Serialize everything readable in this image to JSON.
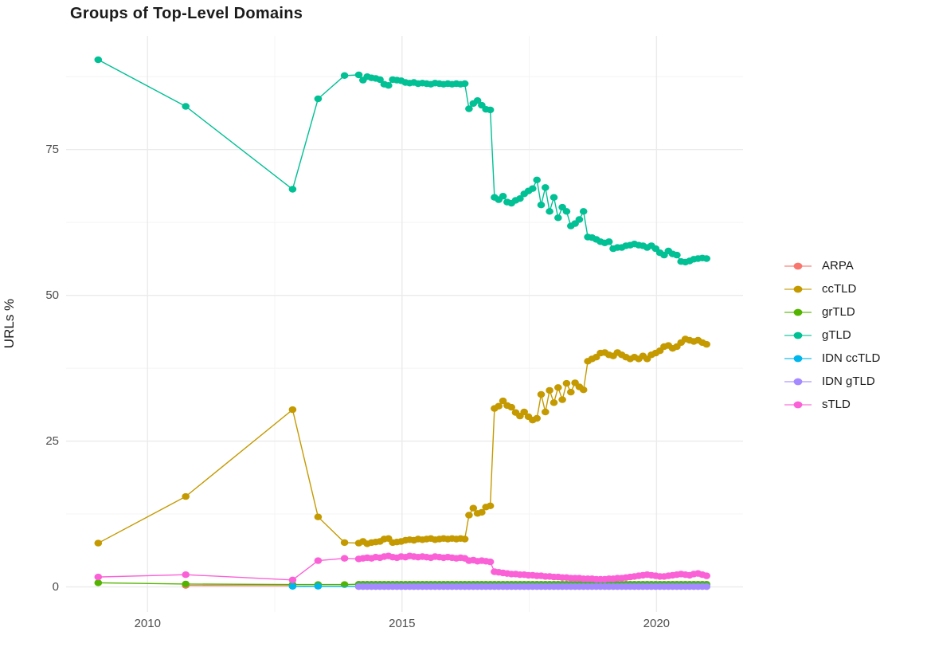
{
  "chart_data": {
    "type": "line",
    "title": "Groups of Top-Level Domains",
    "xlabel": "",
    "ylabel": "URLs %",
    "grid": "on",
    "legend_position": "right",
    "background_color": "#FFFFFF",
    "grid_major_color": "#EBEBEB",
    "grid_minor_color": "#F4F4F4",
    "tick_text_color": "#4D4D4D",
    "title_color": "#1B1B1B",
    "x_domain": [
      2008.4,
      2021.7
    ],
    "y_domain": [
      -4.3,
      94.5
    ],
    "x_ticks_major": [
      2010,
      2015,
      2020
    ],
    "x_ticks_minor": [
      2012.5,
      2017.5
    ],
    "y_ticks_major": [
      0,
      25,
      50,
      75
    ],
    "y_ticks_minor": [
      12.5,
      37.5,
      62.5,
      87.5
    ],
    "x_tick_labels": [
      "2010",
      "2015",
      "2020"
    ],
    "y_tick_labels": [
      "0",
      "25",
      "50",
      "75"
    ],
    "monthly_x": {
      "start": 2014.15,
      "step": 0.08333
    },
    "series": [
      {
        "name": "ARPA",
        "color": "#F8766D",
        "pre": [
          [
            2010.75,
            0.25
          ],
          [
            2012.85,
            0.2
          ]
        ],
        "monthly_values": null
      },
      {
        "name": "ccTLD",
        "color": "#C49A00",
        "pre": [
          [
            2009.03,
            7.5
          ],
          [
            2010.75,
            15.5
          ],
          [
            2012.85,
            30.4
          ],
          [
            2013.35,
            12.0
          ],
          [
            2013.87,
            7.6
          ]
        ],
        "monthly_values": [
          7.5,
          7.8,
          7.4,
          7.6,
          7.7,
          7.8,
          8.2,
          8.3,
          7.6,
          7.7,
          7.8,
          8.0,
          8.1,
          8.0,
          8.2,
          8.1,
          8.2,
          8.3,
          8.1,
          8.2,
          8.3,
          8.2,
          8.3,
          8.2,
          8.3,
          8.2,
          12.3,
          13.5,
          12.6,
          12.8,
          13.7,
          13.9,
          30.6,
          31.0,
          31.9,
          31.1,
          30.8,
          29.9,
          29.3,
          30.0,
          29.2,
          28.6,
          28.9,
          33.0,
          30.0,
          33.7,
          31.6,
          34.2,
          32.1,
          34.9,
          33.4,
          35.0,
          34.3,
          33.8,
          38.7,
          39.1,
          39.4,
          40.1,
          40.2,
          39.8,
          39.6,
          40.2,
          39.8,
          39.4,
          39.1,
          39.4,
          39.1,
          39.6,
          39.1,
          39.8,
          40.1,
          40.5,
          41.2,
          41.4,
          40.9,
          41.2,
          41.9,
          42.5,
          42.3,
          42.1,
          42.3,
          41.9,
          41.6
        ]
      },
      {
        "name": "grTLD",
        "color": "#53B400",
        "pre": [
          [
            2009.03,
            0.7
          ],
          [
            2010.75,
            0.5
          ],
          [
            2012.85,
            0.4
          ],
          [
            2013.35,
            0.4
          ],
          [
            2013.87,
            0.4
          ]
        ],
        "monthly_values": {
          "const": 0.45,
          "count": 83
        }
      },
      {
        "name": "gTLD",
        "color": "#00C094",
        "pre": [
          [
            2009.03,
            90.4
          ],
          [
            2010.75,
            82.4
          ],
          [
            2012.85,
            68.2
          ],
          [
            2013.35,
            83.7
          ],
          [
            2013.87,
            87.7
          ]
        ],
        "monthly_values": [
          87.8,
          86.9,
          87.5,
          87.3,
          87.2,
          87.0,
          86.2,
          86.0,
          87.0,
          86.9,
          86.8,
          86.5,
          86.4,
          86.5,
          86.3,
          86.4,
          86.3,
          86.2,
          86.4,
          86.3,
          86.2,
          86.3,
          86.2,
          86.3,
          86.2,
          86.3,
          82.0,
          82.9,
          83.4,
          82.6,
          81.9,
          81.8,
          66.8,
          66.4,
          67.0,
          66.0,
          65.8,
          66.3,
          66.6,
          67.4,
          67.9,
          68.3,
          69.8,
          65.5,
          68.5,
          64.4,
          66.8,
          63.3,
          65.1,
          64.4,
          61.9,
          62.3,
          63.0,
          64.4,
          60.0,
          59.9,
          59.6,
          59.2,
          59.0,
          59.2,
          58.0,
          58.2,
          58.2,
          58.5,
          58.6,
          58.8,
          58.6,
          58.5,
          58.2,
          58.5,
          58.0,
          57.3,
          56.9,
          57.6,
          57.1,
          56.9,
          55.8,
          55.7,
          55.9,
          56.2,
          56.3,
          56.4,
          56.3
        ]
      },
      {
        "name": "IDN ccTLD",
        "color": "#00B6EB",
        "pre": [
          [
            2012.85,
            0.1
          ],
          [
            2013.35,
            0.12
          ]
        ],
        "monthly_values": {
          "const": 0.1,
          "count": 83
        }
      },
      {
        "name": "IDN gTLD",
        "color": "#A58AFF",
        "pre": [],
        "monthly_values": {
          "const": 0.05,
          "count": 83
        }
      },
      {
        "name": "sTLD",
        "color": "#FB61D7",
        "pre": [
          [
            2009.03,
            1.7
          ],
          [
            2010.75,
            2.1
          ],
          [
            2012.85,
            1.2
          ],
          [
            2013.35,
            4.5
          ],
          [
            2013.87,
            4.9
          ]
        ],
        "monthly_values": [
          4.8,
          4.9,
          5.0,
          4.9,
          5.1,
          5.0,
          5.2,
          5.3,
          5.1,
          5.0,
          5.2,
          5.1,
          5.3,
          5.2,
          5.1,
          5.2,
          5.1,
          5.0,
          5.2,
          5.1,
          5.0,
          5.1,
          5.0,
          4.9,
          5.0,
          4.9,
          4.5,
          4.6,
          4.4,
          4.5,
          4.4,
          4.3,
          2.6,
          2.5,
          2.4,
          2.3,
          2.2,
          2.2,
          2.1,
          2.1,
          2.0,
          2.0,
          1.9,
          1.9,
          1.8,
          1.8,
          1.7,
          1.7,
          1.6,
          1.6,
          1.5,
          1.5,
          1.5,
          1.4,
          1.4,
          1.4,
          1.3,
          1.3,
          1.3,
          1.4,
          1.4,
          1.5,
          1.5,
          1.6,
          1.7,
          1.8,
          1.9,
          2.0,
          2.1,
          2.0,
          1.9,
          1.8,
          1.8,
          1.9,
          2.0,
          2.1,
          2.2,
          2.1,
          2.0,
          2.2,
          2.3,
          2.1,
          1.9
        ]
      }
    ]
  }
}
